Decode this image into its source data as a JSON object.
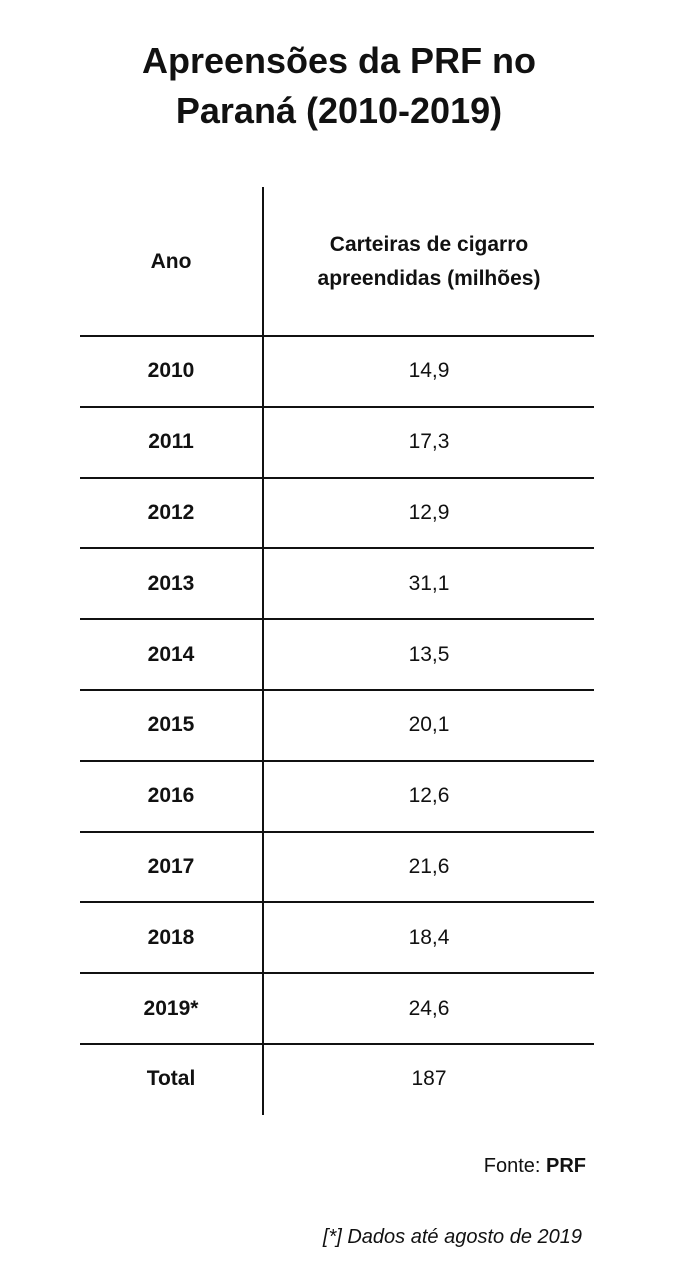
{
  "title": "Apreensões da PRF no Paraná (2010-2019)",
  "table": {
    "header": [
      "Ano",
      "Carteiras de cigarro apreendidas (milhões)"
    ],
    "rows": [
      [
        "2010",
        "14,9"
      ],
      [
        "2011",
        "17,3"
      ],
      [
        "2012",
        "12,9"
      ],
      [
        "2013",
        "31,1"
      ],
      [
        "2014",
        "13,5"
      ],
      [
        "2015",
        "20,1"
      ],
      [
        "2016",
        "12,6"
      ],
      [
        "2017",
        "21,6"
      ],
      [
        "2018",
        "18,4"
      ],
      [
        "2019*",
        "24,6"
      ],
      [
        "Total",
        "187"
      ]
    ]
  },
  "source": {
    "label": "Fonte:",
    "name": "PRF"
  },
  "note": "[*] Dados até agosto de 2019"
}
